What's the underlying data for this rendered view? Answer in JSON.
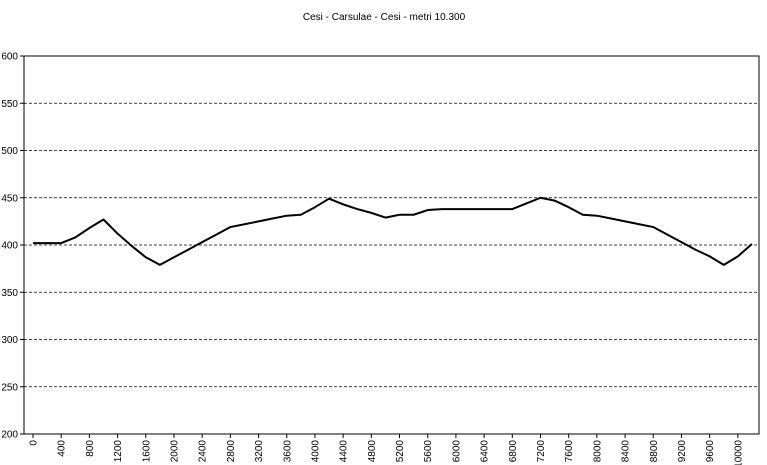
{
  "chart_data": {
    "type": "line",
    "title": "Cesi - Carsulae - Cesi - metri 10.300",
    "x": [
      0,
      200,
      400,
      600,
      800,
      1000,
      1200,
      1400,
      1600,
      1800,
      2000,
      2200,
      2400,
      2600,
      2800,
      3000,
      3200,
      3400,
      3600,
      3800,
      4000,
      4200,
      4400,
      4600,
      4800,
      5000,
      5200,
      5400,
      5600,
      5800,
      6000,
      6200,
      6400,
      6600,
      6800,
      7000,
      7200,
      7400,
      7600,
      7800,
      8000,
      8200,
      8400,
      8600,
      8800,
      9000,
      9200,
      9400,
      9600,
      9800,
      10000,
      10200
    ],
    "series": [
      {
        "name": "Cesi - Carsulae - Cesi",
        "color": "#000000",
        "values": [
          402,
          402,
          402,
          408,
          418,
          427,
          412,
          399,
          387,
          379,
          387,
          395,
          403,
          411,
          419,
          422,
          425,
          428,
          431,
          432,
          440,
          449,
          443,
          438,
          434,
          429,
          432,
          432,
          437,
          438,
          438,
          438,
          438,
          438,
          438,
          444,
          450,
          447,
          440,
          432,
          431,
          428,
          425,
          422,
          419,
          411,
          403,
          395,
          388,
          379,
          388,
          401
        ]
      }
    ],
    "xlim": [
      -128,
      10300
    ],
    "xticks": [
      0,
      400,
      800,
      1200,
      1600,
      2000,
      2400,
      2800,
      3200,
      3600,
      4000,
      4400,
      4800,
      5200,
      5600,
      6000,
      6400,
      6800,
      7200,
      7600,
      8000,
      8400,
      8800,
      9200,
      9600,
      10000
    ],
    "ylim": [
      200,
      600
    ],
    "yticks": [
      200,
      250,
      300,
      350,
      400,
      450,
      500,
      550,
      600
    ],
    "grid": true
  }
}
